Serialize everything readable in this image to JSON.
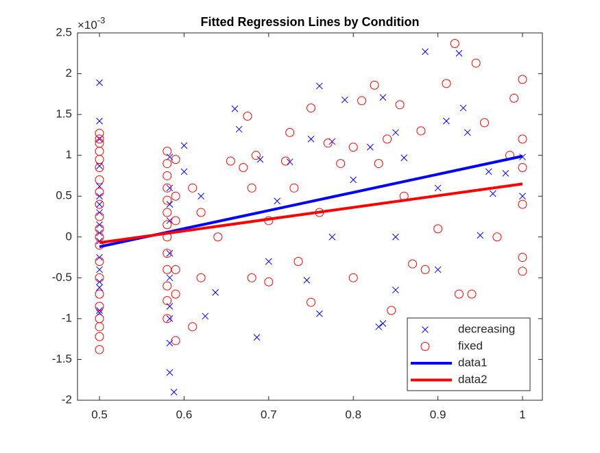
{
  "chart_data": {
    "type": "scatter",
    "title": "Fitted Regression Lines by Condition",
    "y_multiplier": {
      "base": "×10",
      "exponent": "-3"
    },
    "xlim": [
      0.474,
      1.0235
    ],
    "ylim": [
      -2,
      2.5
    ],
    "xticks": [
      0.5,
      0.6,
      0.7,
      0.8,
      0.9,
      {
        "value": 1,
        "label": "1"
      }
    ],
    "yticks": [
      -2,
      -1.5,
      -1,
      -0.5,
      0,
      0.5,
      1,
      1.5,
      2,
      2.5
    ],
    "grid": false,
    "legend_position": "southeast",
    "series": [
      {
        "name": "decreasing",
        "color": "#0000ff",
        "mode": "markers",
        "marker": "x",
        "x": [
          0.5,
          0.5,
          0.5,
          0.5,
          0.5,
          0.5,
          0.5,
          0.5,
          0.5,
          0.5,
          0.5,
          0.5,
          0.5,
          0.5,
          0.5,
          0.5,
          0.5,
          0.583,
          0.583,
          0.583,
          0.583,
          0.583,
          0.583,
          0.583,
          0.583,
          0.583,
          0.583,
          0.588,
          0.6,
          0.6,
          0.62,
          0.625,
          0.637,
          0.66,
          0.665,
          0.686,
          0.69,
          0.71,
          0.725,
          0.745,
          0.75,
          0.76,
          0.76,
          0.775,
          0.79,
          0.8,
          0.82,
          0.83,
          0.835,
          0.835,
          0.85,
          0.85,
          0.86,
          0.885,
          0.9,
          0.91,
          0.925,
          0.93,
          0.935,
          0.95,
          0.965,
          0.98,
          1,
          1,
          0.85,
          0.7,
          0.9,
          0.775,
          0.96
        ],
        "values": [
          1.89,
          1.42,
          1.2,
          0.87,
          0.62,
          0.5,
          0.4,
          0.3,
          0.15,
          0.05,
          -0.05,
          -0.25,
          -0.4,
          -0.55,
          -0.62,
          -0.9,
          -0.93,
          0.98,
          0.6,
          0.4,
          0.2,
          -0.2,
          -0.5,
          -0.85,
          -1.0,
          -1.3,
          -1.66,
          -1.9,
          1.12,
          0.8,
          0.5,
          -0.97,
          -0.68,
          1.57,
          1.32,
          -1.23,
          0.95,
          0.44,
          0.92,
          -0.53,
          1.2,
          1.85,
          -0.94,
          1.17,
          1.68,
          0.7,
          1.1,
          -1.1,
          -1.06,
          1.71,
          1.28,
          0,
          0.97,
          2.27,
          0.6,
          1.42,
          2.25,
          1.58,
          1.28,
          0.02,
          0.53,
          0.78,
          0.98,
          0.5,
          -0.65,
          -0.3,
          -0.4,
          0,
          0.8
        ]
      },
      {
        "name": "fixed",
        "color": "#ff0000",
        "mode": "markers",
        "marker": "o",
        "x": [
          0.5,
          0.5,
          0.5,
          0.5,
          0.5,
          0.5,
          0.5,
          0.5,
          0.5,
          0.5,
          0.5,
          0.5,
          0.5,
          0.5,
          0.5,
          0.5,
          0.5,
          0.5,
          0.5,
          0.5,
          0.5,
          0.58,
          0.58,
          0.58,
          0.58,
          0.58,
          0.58,
          0.58,
          0.58,
          0.58,
          0.58,
          0.58,
          0.58,
          0.58,
          0.59,
          0.59,
          0.59,
          0.59,
          0.59,
          0.59,
          0.61,
          0.61,
          0.62,
          0.62,
          0.64,
          0.655,
          0.67,
          0.675,
          0.68,
          0.68,
          0.685,
          0.7,
          0.7,
          0.725,
          0.73,
          0.735,
          0.75,
          0.75,
          0.76,
          0.77,
          0.785,
          0.8,
          0.8,
          0.81,
          0.825,
          0.83,
          0.84,
          0.845,
          0.855,
          0.87,
          0.88,
          0.885,
          0.9,
          0.91,
          0.925,
          0.94,
          0.945,
          0.955,
          0.97,
          0.985,
          1,
          1,
          1,
          1,
          1,
          1,
          0.92,
          0.99,
          0.86,
          0.72
        ],
        "values": [
          1.27,
          1.2,
          1.15,
          1.05,
          0.95,
          0.85,
          0.7,
          0.55,
          0.4,
          0.25,
          0.1,
          0,
          -0.1,
          -0.3,
          -0.5,
          -0.7,
          -0.85,
          -1.0,
          -1.1,
          -1.22,
          -1.38,
          1.05,
          0.9,
          0.75,
          0.6,
          0.45,
          0.3,
          0.15,
          0,
          -0.2,
          -0.4,
          -0.6,
          -0.78,
          -1.0,
          0.95,
          0.5,
          0.2,
          -0.4,
          -0.7,
          -1.27,
          0.6,
          -1.1,
          0.3,
          -0.5,
          0,
          0.93,
          0.85,
          1.48,
          0.6,
          -0.5,
          1.0,
          -0.55,
          0.2,
          1.28,
          0.6,
          -0.3,
          1.58,
          -0.8,
          0.3,
          1.15,
          0.9,
          1.1,
          -0.5,
          1.67,
          1.86,
          0.9,
          1.2,
          -0.9,
          1.62,
          -0.33,
          1.3,
          -0.4,
          0.1,
          1.88,
          -0.7,
          -0.7,
          2.13,
          1.4,
          0,
          1.0,
          1.93,
          1.2,
          0.85,
          0.4,
          -0.25,
          -0.42,
          2.37,
          1.7,
          0.5,
          0.93
        ]
      },
      {
        "name": "data1",
        "color": "#0000ff",
        "mode": "line",
        "x": [
          0.5,
          1
        ],
        "values": [
          -0.12,
          0.99
        ]
      },
      {
        "name": "data2",
        "color": "#ff0000",
        "mode": "line",
        "x": [
          0.5,
          1
        ],
        "values": [
          -0.07,
          0.65
        ]
      }
    ]
  }
}
